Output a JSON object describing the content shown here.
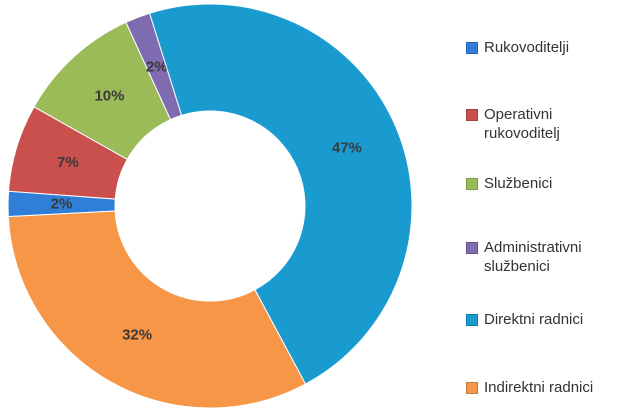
{
  "chart_data": {
    "type": "donut",
    "categories": [
      "Rukovoditelji",
      "Operativni rukovoditelj",
      "Službenici",
      "Administrativni službenici",
      "Direktni radnici",
      "Indirektni radnici"
    ],
    "values": [
      2,
      7,
      10,
      2,
      47,
      32
    ],
    "value_labels": [
      "2%",
      "7%",
      "10%",
      "2%",
      "47%",
      "32%"
    ],
    "colors": [
      "#2f7ed8",
      "#c9504d",
      "#9bbb59",
      "#7e6bb0",
      "#1a9bd0",
      "#f79646"
    ],
    "legend": "right"
  }
}
